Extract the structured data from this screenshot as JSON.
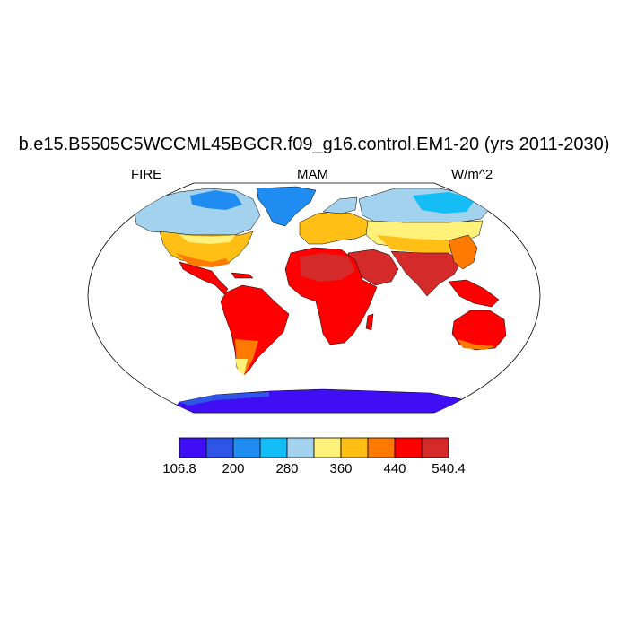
{
  "title": "b.e15.B5505C5WCCML45BGCR.f09_g16.control.EM1-20 (yrs 2011-2030)",
  "left_label": "FIRE",
  "center_label": "MAM",
  "right_label": "W/m^2",
  "colorbar": {
    "colors": [
      "#3f0ef5",
      "#2f55e8",
      "#1e8cf0",
      "#14bdf5",
      "#a3d2ef",
      "#fff17a",
      "#ffbf14",
      "#ff7a00",
      "#ff0000",
      "#d42a2a"
    ],
    "labels": [
      "106.8",
      "200",
      "280",
      "360",
      "440",
      "540.4"
    ]
  },
  "map": {
    "projection": "Robinson",
    "land_regions": [
      {
        "name": "Greenland",
        "level": 2
      },
      {
        "name": "Canada Arctic",
        "level": 4
      },
      {
        "name": "North America",
        "level": 6
      },
      {
        "name": "Central America",
        "level": 8
      },
      {
        "name": "South America",
        "level": 8
      },
      {
        "name": "Europe",
        "level": 5
      },
      {
        "name": "Siberia",
        "level": 3
      },
      {
        "name": "Central Asia",
        "level": 6
      },
      {
        "name": "Africa",
        "level": 8
      },
      {
        "name": "Arabia",
        "level": 9
      },
      {
        "name": "South Asia",
        "level": 9
      },
      {
        "name": "Southeast Asia",
        "level": 8
      },
      {
        "name": "Australia",
        "level": 8
      },
      {
        "name": "Antarctica",
        "level": 0
      }
    ]
  }
}
